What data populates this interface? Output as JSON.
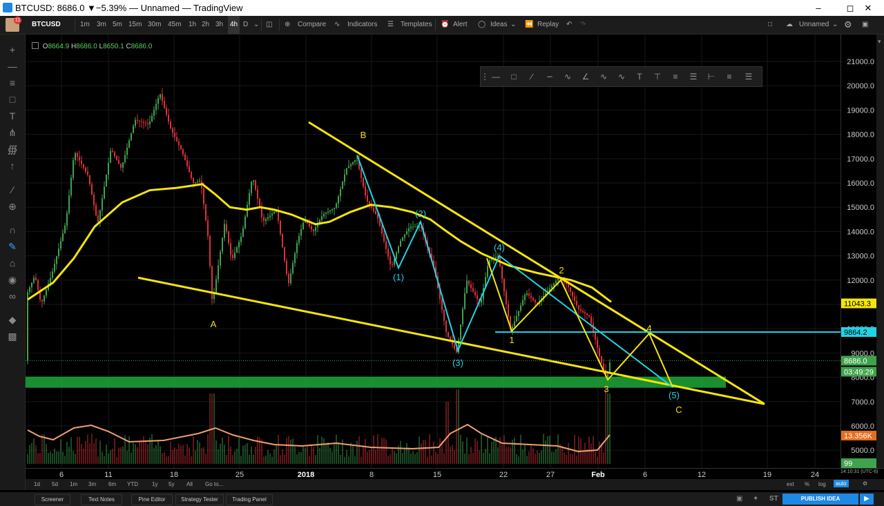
{
  "window": {
    "title": "BTCUSD: 8686.0 ▼−5.39% — Unnamed — TradingView"
  },
  "toolbar": {
    "notif_count": "11",
    "symbol": "BTCUSD",
    "intervals": [
      "1m",
      "3m",
      "5m",
      "15m",
      "30m",
      "45m",
      "1h",
      "2h",
      "3h",
      "4h",
      "D"
    ],
    "active_interval": "4h",
    "compare": "Compare",
    "indicators": "Indicators",
    "templates": "Templates",
    "alert": "Alert",
    "ideas": "Ideas",
    "replay": "Replay",
    "layout_name": "Unnamed"
  },
  "ohlc": {
    "o_label": "O",
    "o": "8664.9",
    "h_label": "H",
    "h": "8686.0",
    "l_label": "L",
    "l": "8650.1",
    "c_label": "C",
    "c": "8686.0"
  },
  "price_scale": {
    "ticks": [
      "21000.0",
      "20000.0",
      "19000.0",
      "18000.0",
      "17000.0",
      "16000.0",
      "15000.0",
      "14000.0",
      "13000.0",
      "12000.0",
      "11000.0",
      "10000.0",
      "9000.0",
      "8000.0",
      "7000.0",
      "6000.0",
      "5000.0"
    ],
    "tags": [
      {
        "text": "11043.3",
        "bg": "#f5e50b",
        "fg": "#000000"
      },
      {
        "text": "9864.2",
        "bg": "#22d3e6",
        "fg": "#000000"
      },
      {
        "text": "8686.0",
        "bg": "#3fa34d",
        "fg": "#ffffff"
      },
      {
        "text": "03:49:29",
        "bg": "#3fa34d",
        "fg": "#ffffff"
      },
      {
        "text": "13.356K",
        "bg": "#e66d1f",
        "fg": "#ffffff"
      },
      {
        "text": "99",
        "bg": "#3fa34d",
        "fg": "#ffffff"
      }
    ]
  },
  "time_scale": {
    "labels": [
      "6",
      "11",
      "18",
      "25",
      "2018",
      "8",
      "15",
      "22",
      "27",
      "Feb",
      "6",
      "12",
      "19",
      "24"
    ],
    "clock": "14:10:31 (UTC-6)"
  },
  "bottom_bar": {
    "ranges": [
      "1d",
      "5d",
      "1m",
      "3m",
      "6m",
      "YTD",
      "1y",
      "5y",
      "All"
    ],
    "goto": "Go to...",
    "right": [
      "ext",
      "%",
      "log",
      "auto"
    ]
  },
  "footer": {
    "tabs": [
      "Screener",
      "Text Notes",
      "Pine Editor",
      "Strategy Tester",
      "Trading Panel"
    ],
    "publish": "PUBLISH IDEA",
    "st": "ST"
  },
  "wave_labels": {
    "A": "A",
    "B": "B",
    "C": "C",
    "w1": "(1)",
    "w2": "(2)",
    "w3": "(3)",
    "w4": "(4)",
    "w5": "(5)",
    "s1": "1",
    "s2": "2",
    "s3": "3",
    "s4": "4"
  },
  "colors": {
    "up": "#3fa34d",
    "down": "#d8323c",
    "ma": "#f5e50b",
    "cyan": "#22d3e6",
    "zone": "#1ea83a",
    "volume_ma": "#f0a070"
  }
}
